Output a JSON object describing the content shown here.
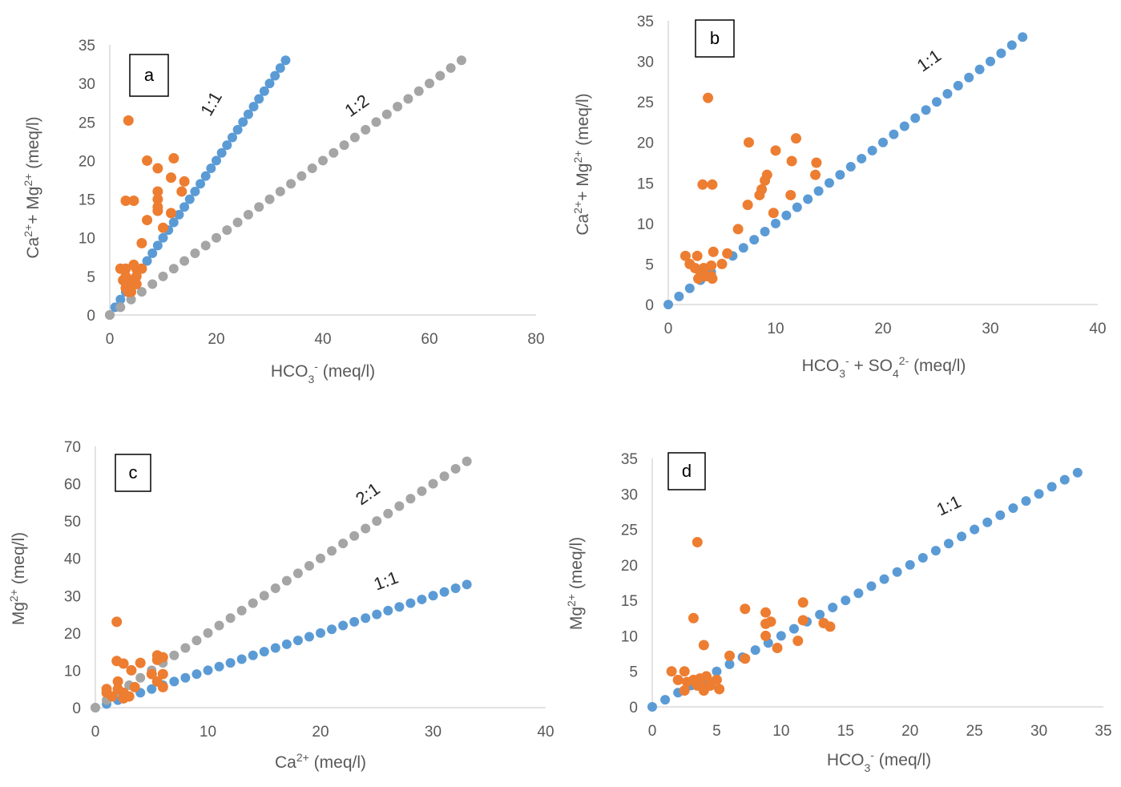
{
  "colors": {
    "line_1_1": "#5B9BD5",
    "line_ratio_grey": "#A5A5A5",
    "observed": "#ED7D31",
    "axis": "#D9D9D9",
    "text": "#595959"
  },
  "chart_data": [
    {
      "panel": "a",
      "type": "scatter",
      "xlabel": "HCO3- (meq/l)",
      "ylabel": "Ca2+ + Mg2+ (meq/l)",
      "xlim": [
        0,
        80
      ],
      "ylim": [
        0,
        35
      ],
      "xticks": [
        0,
        20,
        40,
        60,
        80
      ],
      "yticks": [
        0,
        5,
        10,
        15,
        20,
        25,
        30,
        35
      ],
      "x_tick_labels": [
        "0",
        "20",
        "40",
        "60",
        "80"
      ],
      "y_tick_labels": [
        "0",
        "5",
        "10",
        "15",
        "20",
        "25",
        "30",
        "35"
      ],
      "series": [
        {
          "name": "1:1",
          "color": "#5B9BD5",
          "kind": "ratio",
          "ratio": 1,
          "x_max": 33,
          "step": 1,
          "label_at": [
            20,
            27
          ],
          "label_rotation": -60
        },
        {
          "name": "1:2",
          "color": "#A5A5A5",
          "kind": "ratio",
          "ratio": 0.5,
          "x_max": 66,
          "step": 2,
          "label_at": [
            47,
            26.5
          ],
          "label_rotation": -35
        },
        {
          "name": "samples",
          "color": "#ED7D31",
          "kind": "points",
          "points": [
            [
              3.5,
              25.2
            ],
            [
              3,
              14.8
            ],
            [
              4.5,
              14.8
            ],
            [
              7,
              20
            ],
            [
              9,
              19
            ],
            [
              12,
              20.3
            ],
            [
              11.5,
              17.8
            ],
            [
              14,
              17.3
            ],
            [
              13.5,
              16
            ],
            [
              9,
              16
            ],
            [
              9,
              15
            ],
            [
              9,
              14
            ],
            [
              9,
              13.5
            ],
            [
              11.5,
              13.2
            ],
            [
              7,
              12.3
            ],
            [
              10,
              11.3
            ],
            [
              6,
              9.3
            ],
            [
              2,
              6
            ],
            [
              3,
              6
            ],
            [
              4.5,
              6.5
            ],
            [
              5,
              6
            ],
            [
              6,
              6
            ],
            [
              3,
              5
            ],
            [
              4,
              4.5
            ],
            [
              5,
              5
            ],
            [
              2.5,
              4.5
            ],
            [
              3.5,
              4
            ],
            [
              3,
              3.5
            ],
            [
              4,
              3
            ],
            [
              3.5,
              3
            ],
            [
              5,
              4
            ]
          ]
        }
      ]
    },
    {
      "panel": "b",
      "type": "scatter",
      "xlabel": "HCO3- + SO42- (meq/l)",
      "ylabel": "Ca2+ + Mg2+ (meq/l)",
      "xlim": [
        0,
        40
      ],
      "ylim": [
        0,
        35
      ],
      "xticks": [
        0,
        10,
        20,
        30,
        40
      ],
      "yticks": [
        0,
        5,
        10,
        15,
        20,
        25,
        30,
        35
      ],
      "x_tick_labels": [
        "0",
        "10",
        "20",
        "30",
        "40"
      ],
      "y_tick_labels": [
        "0",
        "5",
        "10",
        "15",
        "20",
        "25",
        "30",
        "35"
      ],
      "series": [
        {
          "name": "1:1",
          "color": "#5B9BD5",
          "kind": "ratio",
          "ratio": 1,
          "x_max": 33,
          "step": 1,
          "label_at": [
            24.6,
            29.5
          ],
          "label_rotation": -35
        },
        {
          "name": "samples",
          "color": "#ED7D31",
          "kind": "points",
          "points": [
            [
              3.7,
              25.5
            ],
            [
              7.5,
              20
            ],
            [
              11.9,
              20.5
            ],
            [
              10,
              19
            ],
            [
              11.5,
              17.7
            ],
            [
              13.8,
              17.5
            ],
            [
              9.2,
              16
            ],
            [
              13.7,
              16
            ],
            [
              9,
              15.3
            ],
            [
              3.2,
              14.8
            ],
            [
              4.1,
              14.8
            ],
            [
              8.7,
              14.2
            ],
            [
              8.5,
              13.5
            ],
            [
              11.4,
              13.5
            ],
            [
              7.4,
              12.3
            ],
            [
              9.8,
              11.3
            ],
            [
              6.5,
              9.3
            ],
            [
              4.2,
              6.5
            ],
            [
              1.6,
              6
            ],
            [
              2.7,
              6
            ],
            [
              5.5,
              6.3
            ],
            [
              2,
              5
            ],
            [
              2.5,
              4.5
            ],
            [
              3.3,
              4.5
            ],
            [
              4,
              4.8
            ],
            [
              5,
              5
            ],
            [
              3,
              4
            ],
            [
              3.5,
              3.5
            ],
            [
              4,
              3.5
            ],
            [
              2.8,
              3.2
            ],
            [
              4.1,
              3.2
            ]
          ]
        }
      ]
    },
    {
      "panel": "c",
      "type": "scatter",
      "xlabel": "Ca2+ (meq/l)",
      "ylabel": "Mg2+ (meq/l)",
      "xlim": [
        0,
        40
      ],
      "ylim": [
        0,
        70
      ],
      "xticks": [
        0,
        10,
        20,
        30,
        40
      ],
      "yticks": [
        0,
        10,
        20,
        30,
        40,
        50,
        60,
        70
      ],
      "x_tick_labels": [
        "0",
        "10",
        "20",
        "30",
        "40"
      ],
      "y_tick_labels": [
        "0",
        "10",
        "20",
        "30",
        "40",
        "50",
        "60",
        "70"
      ],
      "series": [
        {
          "name": "1:1",
          "color": "#5B9BD5",
          "kind": "ratio",
          "ratio": 1,
          "x_max": 33,
          "step": 1,
          "label_at": [
            26,
            32.5
          ],
          "label_rotation": -20
        },
        {
          "name": "2:1",
          "color": "#A5A5A5",
          "kind": "ratio",
          "ratio": 2,
          "x_max": 33,
          "step": 1,
          "label_at": [
            24.5,
            56
          ],
          "label_rotation": -35
        },
        {
          "name": "samples",
          "color": "#ED7D31",
          "kind": "points",
          "points": [
            [
              1.9,
              23
            ],
            [
              1.9,
              12.5
            ],
            [
              2.5,
              11.8
            ],
            [
              4,
              12
            ],
            [
              5.5,
              14
            ],
            [
              5.5,
              12.8
            ],
            [
              6,
              13.5
            ],
            [
              3.2,
              10
            ],
            [
              5,
              9
            ],
            [
              6,
              9
            ],
            [
              5.5,
              7
            ],
            [
              6,
              5.5
            ],
            [
              3.5,
              5.5
            ],
            [
              1,
              5
            ],
            [
              1,
              4
            ],
            [
              2,
              7
            ],
            [
              2,
              5
            ],
            [
              2.5,
              4
            ],
            [
              3,
              3
            ],
            [
              1.5,
              3
            ],
            [
              2.5,
              2.5
            ]
          ]
        }
      ]
    },
    {
      "panel": "d",
      "type": "scatter",
      "xlabel": "HCO3- (meq/l)",
      "ylabel": "Mg2+ (meq/l)",
      "xlim": [
        0,
        35
      ],
      "ylim": [
        0,
        35
      ],
      "xticks": [
        0,
        5,
        10,
        15,
        20,
        25,
        30,
        35
      ],
      "yticks": [
        0,
        5,
        10,
        15,
        20,
        25,
        30,
        35
      ],
      "x_tick_labels": [
        "0",
        "5",
        "10",
        "15",
        "20",
        "25",
        "30",
        "35"
      ],
      "y_tick_labels": [
        "0",
        "5",
        "10",
        "15",
        "20",
        "25",
        "30",
        "35"
      ],
      "series": [
        {
          "name": "1:1",
          "color": "#5B9BD5",
          "kind": "ratio",
          "ratio": 1,
          "x_max": 33,
          "step": 1,
          "label_at": [
            23.2,
            27.6
          ],
          "label_rotation": -25
        },
        {
          "name": "samples",
          "color": "#ED7D31",
          "kind": "points",
          "points": [
            [
              3.5,
              23.2
            ],
            [
              3.2,
              12.5
            ],
            [
              7.2,
              13.8
            ],
            [
              8.8,
              13.3
            ],
            [
              11.7,
              14.7
            ],
            [
              11.7,
              12.2
            ],
            [
              9.2,
              12
            ],
            [
              8.8,
              11.7
            ],
            [
              13.3,
              11.8
            ],
            [
              13.8,
              11.3
            ],
            [
              8.8,
              10
            ],
            [
              11.3,
              9.3
            ],
            [
              9.7,
              8.3
            ],
            [
              4,
              8.7
            ],
            [
              6,
              7.2
            ],
            [
              7.2,
              6.8
            ],
            [
              1.5,
              5
            ],
            [
              2.5,
              5
            ],
            [
              2,
              3.8
            ],
            [
              2.7,
              3.5
            ],
            [
              3.2,
              3.8
            ],
            [
              3.7,
              4
            ],
            [
              4.2,
              4.3
            ],
            [
              4.5,
              3.5
            ],
            [
              5,
              3.8
            ],
            [
              3.5,
              3
            ],
            [
              4,
              2.7
            ],
            [
              4,
              2.3
            ],
            [
              5.2,
              2.5
            ],
            [
              2.5,
              2.3
            ],
            [
              4.5,
              3
            ]
          ]
        }
      ]
    }
  ]
}
